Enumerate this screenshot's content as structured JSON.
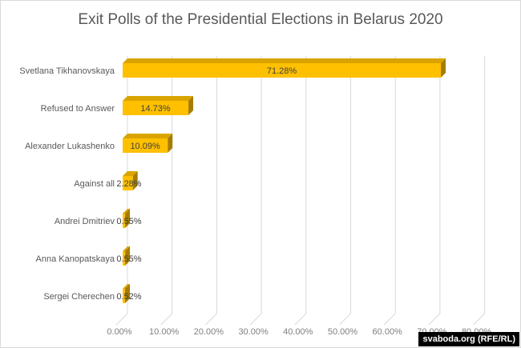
{
  "chart_data": {
    "type": "bar",
    "orientation": "horizontal",
    "title": "Exit Polls of the Presidential Elections in Belarus 2020",
    "categories": [
      "Svetlana Tikhanovskaya",
      "Refused to Answer",
      "Alexander Lukashenko",
      "Against all",
      "Andrei Dmitriev",
      "Anna Kanopatskaya",
      "Sergei Cherechen"
    ],
    "values": [
      71.28,
      14.73,
      10.09,
      2.28,
      0.55,
      0.55,
      0.52
    ],
    "data_labels": [
      "71.28%",
      "14.73%",
      "10.09%",
      "2.28%",
      "0.55%",
      "0.55%",
      "0.52%"
    ],
    "xticks": [
      "0.00%",
      "10.00%",
      "20.00%",
      "30.00%",
      "40.00%",
      "50.00%",
      "60.00%",
      "70.00%",
      "80.00%"
    ],
    "xlim": [
      0,
      80
    ],
    "xlabel": "",
    "ylabel": "",
    "grid": true,
    "bar_color": "#ffc000"
  },
  "credit": "svaboda.org (RFE/RL)"
}
